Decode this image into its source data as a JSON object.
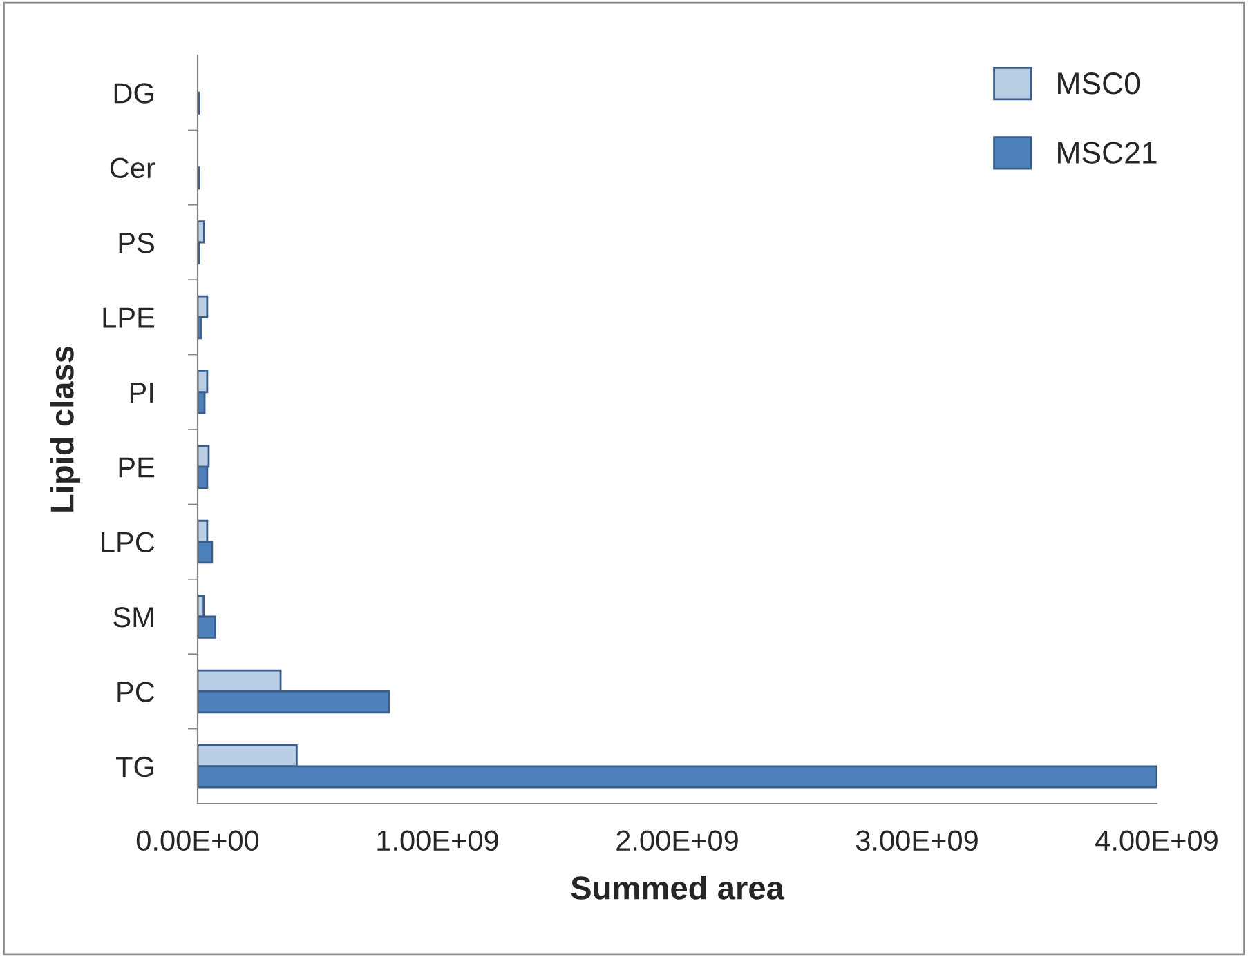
{
  "chart_data": {
    "type": "bar",
    "orientation": "horizontal",
    "xlabel": "Summed area",
    "ylabel": "Lipid class",
    "categories": [
      "DG",
      "Cer",
      "PS",
      "LPE",
      "PI",
      "PE",
      "LPC",
      "SM",
      "PC",
      "TG"
    ],
    "series": [
      {
        "name": "MSC0",
        "color": "#b9cde5",
        "values": [
          null,
          null,
          27000000,
          40000000,
          40000000,
          46000000,
          40000000,
          25000000,
          346000000,
          413000000
        ]
      },
      {
        "name": "MSC21",
        "color": "#4f81bd",
        "values": [
          5000000,
          5000000,
          5000000,
          13000000,
          29000000,
          40000000,
          60000000,
          73000000,
          797000000,
          4000000000
        ]
      }
    ],
    "xlim": [
      0,
      4000000000
    ],
    "xticks": [
      {
        "value": 0,
        "label": "0.00E+00"
      },
      {
        "value": 1000000000,
        "label": "1.00E+09"
      },
      {
        "value": 2000000000,
        "label": "2.00E+09"
      },
      {
        "value": 3000000000,
        "label": "3.00E+09"
      },
      {
        "value": 4000000000,
        "label": "4.00E+09"
      }
    ],
    "legend": "top right",
    "grid": false
  }
}
